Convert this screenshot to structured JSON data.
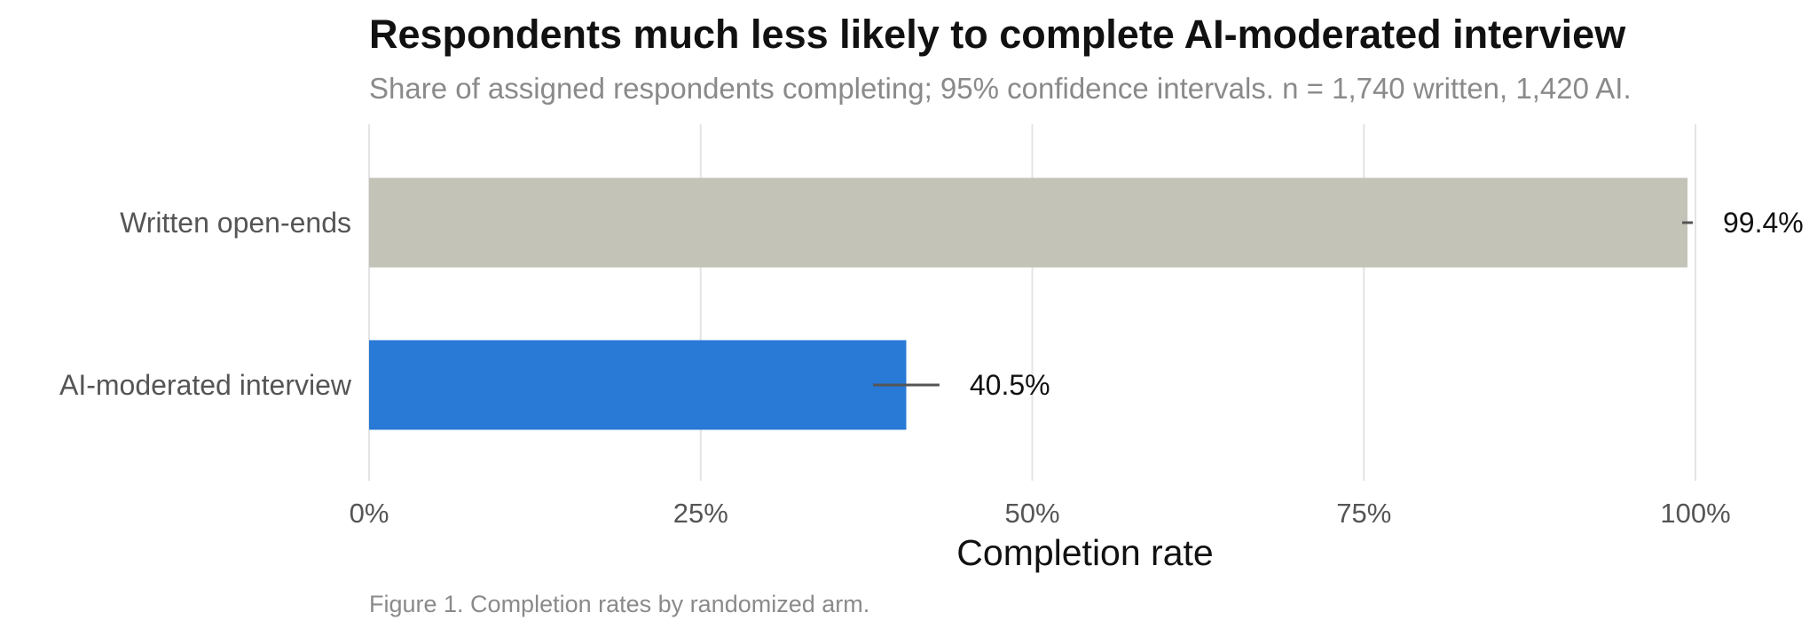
{
  "chart_data": {
    "type": "bar",
    "orientation": "horizontal",
    "title": "Respondents much less likely to complete AI-moderated interview",
    "subtitle": "Share of assigned respondents completing; 95% confidence intervals. n = 1,740 written, 1,420 AI.",
    "xlabel": "Completion rate",
    "ylabel": "",
    "caption": "Figure 1. Completion rates by randomized arm.",
    "xlim": [
      0,
      100
    ],
    "x_ticks": [
      0,
      25,
      50,
      75,
      100
    ],
    "x_tick_labels": [
      "0%",
      "25%",
      "50%",
      "75%",
      "100%"
    ],
    "grid": true,
    "categories": [
      "Written open-ends",
      "AI-moderated interview"
    ],
    "values": [
      99.4,
      40.5
    ],
    "value_labels": [
      "99.4%",
      "40.5%"
    ],
    "ci_low": [
      99.0,
      38.0
    ],
    "ci_high": [
      99.8,
      43.0
    ],
    "colors": [
      "#c3c3b8",
      "#2979d6"
    ]
  }
}
